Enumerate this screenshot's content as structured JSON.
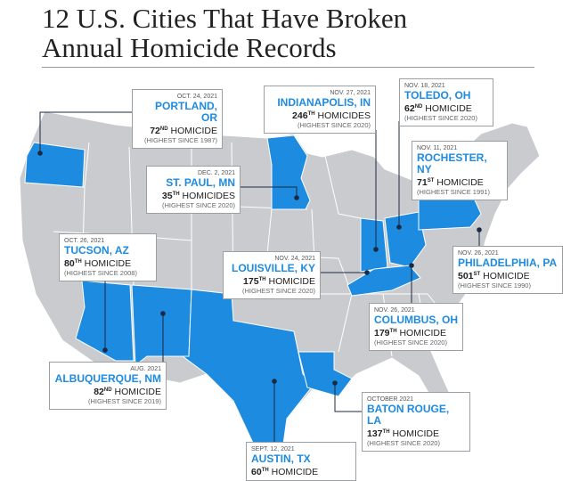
{
  "header": {
    "title_lines": [
      "12 U.S. Cities That Have Broken",
      "Annual Homicide Records"
    ]
  },
  "callouts": [
    {
      "date": "OCT. 24, 2021",
      "city": "PORTLAND, OR",
      "count": 72,
      "suffix": "ND",
      "unit": "HOMICIDE",
      "note": "(HIGHEST SINCE 1987)"
    },
    {
      "date": "NOV. 27, 2021",
      "city": "INDIANAPOLIS, IN",
      "count": 246,
      "suffix": "TH",
      "unit": "HOMICIDES",
      "note": "(HIGHEST SINCE 2020)"
    },
    {
      "date": "NOV. 18, 2021",
      "city": "TOLEDO, OH",
      "count": 62,
      "suffix": "ND",
      "unit": "HOMICIDE",
      "note": "(HIGHEST SINCE 2020)"
    },
    {
      "date": "DEC. 2, 2021",
      "city": "ST. PAUL, MN",
      "count": 35,
      "suffix": "TH",
      "unit": "HOMICIDES",
      "note": "(HIGHEST SINCE 2020)"
    },
    {
      "date": "NOV. 11, 2021",
      "city": "ROCHESTER, NY",
      "count": 71,
      "suffix": "ST",
      "unit": "HOMICIDE",
      "note": "(HIGHEST SINCE 1991)"
    },
    {
      "date": "OCT. 26, 2021",
      "city": "TUCSON, AZ",
      "count": 80,
      "suffix": "TH",
      "unit": "HOMICIDE",
      "note": "(HIGHEST SINCE 2008)"
    },
    {
      "date": "NOV. 24, 2021",
      "city": "LOUISVILLE, KY",
      "count": 175,
      "suffix": "TH",
      "unit": "HOMICIDE",
      "note": "(HIGHEST SINCE 2020)"
    },
    {
      "date": "NOV. 26, 2021",
      "city": "PHILADELPHIA, PA",
      "count": 501,
      "suffix": "ST",
      "unit": "HOMICIDE",
      "note": "(HIGHEST SINCE 1990)"
    },
    {
      "date": "NOV. 26, 2021",
      "city": "COLUMBUS, OH",
      "count": 179,
      "suffix": "TH",
      "unit": "HOMICIDE",
      "note": "(HIGHEST SINCE 2020)"
    },
    {
      "date": "AUG. 2021",
      "city": "ALBUQUERQUE, NM",
      "count": 82,
      "suffix": "ND",
      "unit": "HOMICIDE",
      "note": "(HIGHEST SINCE 2019)"
    },
    {
      "date": "OCTOBER 2021",
      "city": "BATON ROUGE, LA",
      "count": 137,
      "suffix": "TH",
      "unit": "HOMICIDE",
      "note": "(HIGHEST SINCE 2020)"
    },
    {
      "date": "SEPT. 12, 2021",
      "city": "AUSTIN, TX",
      "count": 60,
      "suffix": "TH",
      "unit": "HOMICIDE"
    }
  ]
}
